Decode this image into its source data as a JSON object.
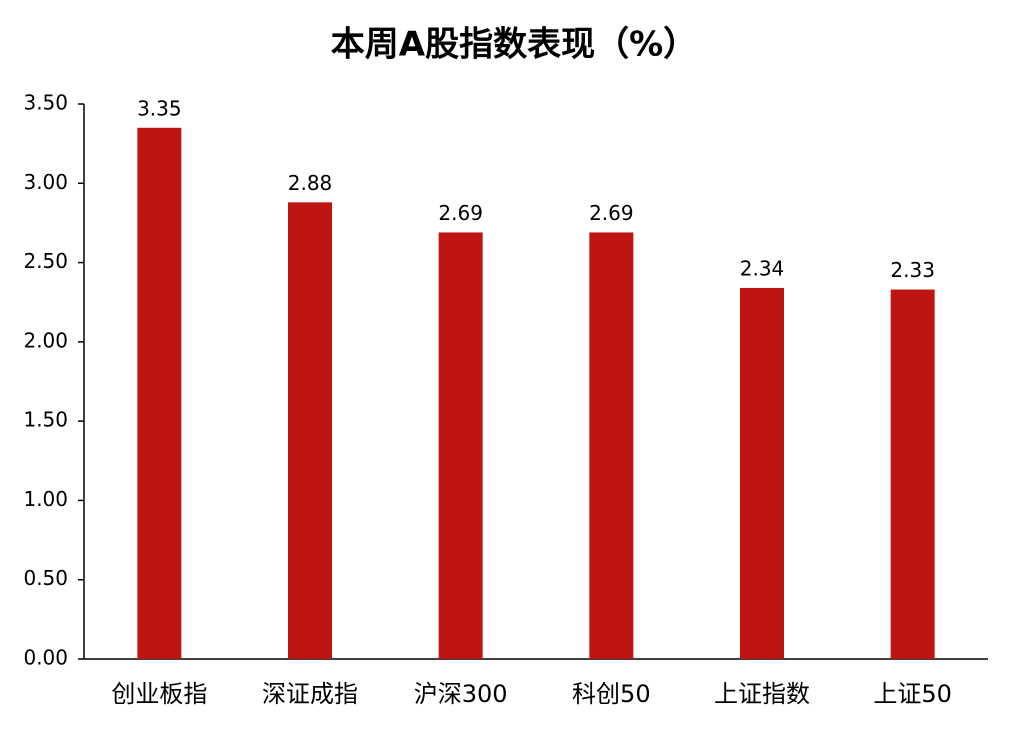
{
  "chart_data": {
    "type": "bar",
    "title": "本周A股指数表现（%）",
    "categories": [
      "创业板指",
      "深证成指",
      "沪深300",
      "科创50",
      "上证指数",
      "上证50"
    ],
    "values": [
      3.35,
      2.88,
      2.69,
      2.69,
      2.34,
      2.33
    ],
    "color": "#be1512",
    "ylim": [
      0,
      3.5
    ],
    "yticks": [
      {
        "value": 0,
        "label": "0.00"
      },
      {
        "value": 0.5,
        "label": "0.50"
      },
      {
        "value": 1,
        "label": "1.00"
      },
      {
        "value": 1.5,
        "label": "1.50"
      },
      {
        "value": 2,
        "label": "2.00"
      },
      {
        "value": 2.5,
        "label": "2.50"
      },
      {
        "value": 3,
        "label": "3.00"
      },
      {
        "value": 3.5,
        "label": "3.50"
      }
    ],
    "grid": false
  }
}
